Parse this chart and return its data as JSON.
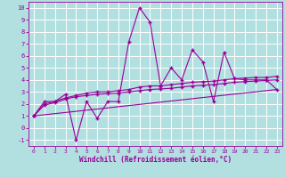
{
  "xlabel": "Windchill (Refroidissement éolien,°C)",
  "background_color": "#b2e0e0",
  "grid_color": "#ffffff",
  "line_color": "#990099",
  "xlim": [
    -0.5,
    23.5
  ],
  "ylim": [
    -1.5,
    10.5
  ],
  "xticks": [
    0,
    1,
    2,
    3,
    4,
    5,
    6,
    7,
    8,
    9,
    10,
    11,
    12,
    13,
    14,
    15,
    16,
    17,
    18,
    19,
    20,
    21,
    22,
    23
  ],
  "yticks": [
    -1,
    0,
    1,
    2,
    3,
    4,
    5,
    6,
    7,
    8,
    9,
    10
  ],
  "series1_x": [
    0,
    1,
    2,
    3,
    4,
    5,
    6,
    7,
    8,
    9,
    10,
    11,
    12,
    13,
    14,
    15,
    16,
    17,
    18,
    19,
    20,
    21,
    22,
    23
  ],
  "series1_y": [
    1.0,
    2.2,
    2.2,
    2.8,
    -1.0,
    2.2,
    0.8,
    2.2,
    2.2,
    7.2,
    10.0,
    8.8,
    3.5,
    5.0,
    4.0,
    6.5,
    5.5,
    2.2,
    6.3,
    4.1,
    4.0,
    4.0,
    4.0,
    3.2
  ],
  "series2_x": [
    0,
    1,
    2,
    3,
    4,
    5,
    6,
    7,
    8,
    9,
    10,
    11,
    12,
    13,
    14,
    15,
    16,
    17,
    18,
    19,
    20,
    21,
    22,
    23
  ],
  "series2_y": [
    1.0,
    2.0,
    2.2,
    2.5,
    2.7,
    2.9,
    3.0,
    3.0,
    3.1,
    3.2,
    3.4,
    3.5,
    3.5,
    3.6,
    3.7,
    3.8,
    3.85,
    3.9,
    4.0,
    4.1,
    4.15,
    4.2,
    4.2,
    4.3
  ],
  "series3_x": [
    0,
    1,
    2,
    3,
    4,
    5,
    6,
    7,
    8,
    9,
    10,
    11,
    12,
    13,
    14,
    15,
    16,
    17,
    18,
    19,
    20,
    21,
    22,
    23
  ],
  "series3_y": [
    1.0,
    1.9,
    2.1,
    2.4,
    2.6,
    2.7,
    2.8,
    2.85,
    2.9,
    3.0,
    3.1,
    3.2,
    3.25,
    3.3,
    3.4,
    3.5,
    3.55,
    3.6,
    3.7,
    3.8,
    3.85,
    3.9,
    3.95,
    4.0
  ],
  "series4_x": [
    0,
    23
  ],
  "series4_y": [
    1.0,
    3.2
  ],
  "marker": "+"
}
